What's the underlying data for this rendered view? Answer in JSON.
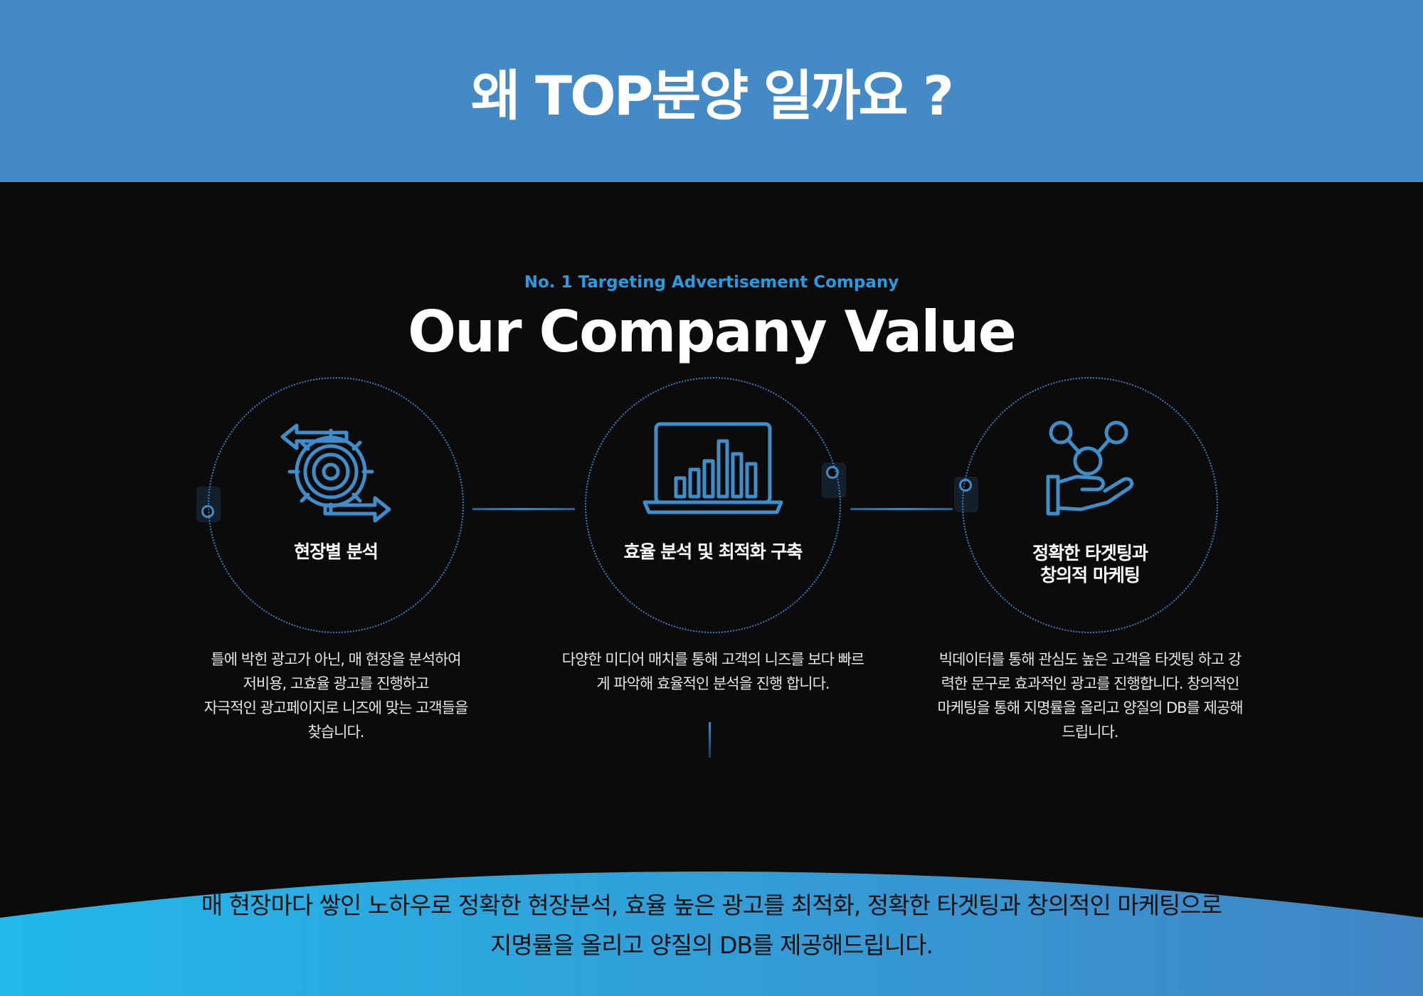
{
  "banner": {
    "title": "왜 TOP분양 일까요 ?"
  },
  "section": {
    "eyebrow": "No. 1 Targeting Advertisement Company",
    "title": "Our Company Value"
  },
  "values": [
    {
      "icon": "gear-cycle-icon",
      "label_lines": [
        "현장별 분석"
      ],
      "desc_lines": [
        "틀에 박힌 광고가 아닌, 매 현장을 분석하여",
        "저비용, 고효율 광고를 진행하고",
        "자극적인 광고페이지로 니즈에 맞는 고객들을",
        "찾습니다."
      ]
    },
    {
      "icon": "laptop-chart-icon",
      "label_lines": [
        "효율 분석 및 최적화 구축"
      ],
      "desc_lines": [
        "다양한 미디어 매치를 통해 고객의 니즈를 보다 빠르",
        "게 파악해 효율적인 분석을 진행 합니다."
      ]
    },
    {
      "icon": "hand-network-icon",
      "label_lines": [
        "정확한 타겟팅과",
        "창의적 마케팅"
      ],
      "desc_lines": [
        "빅데이터를 통해 관심도 높은 고객을 타겟팅 하고 강",
        "력한 문구로 효과적인 광고를 진행합니다. 창의적인",
        "마케팅을 통해 지명률을 올리고 양질의 DB를 제공해",
        "드립니다."
      ]
    }
  ],
  "footer": {
    "line1": "매 현장마다 쌓인 노하우로 정확한 현장분석, 효율 높은 광고를 최적화, 정확한 타겟팅과 창의적인 마케팅으로",
    "line2": "지명률을 올리고 양질의 DB를 제공해드립니다."
  },
  "colors": {
    "banner": "#448ac6",
    "accent": "#2a9be0",
    "icon": "#3f8ec9",
    "background": "#0b0b0b",
    "wave_start": "#22b8ea",
    "wave_end": "#4185c5"
  }
}
